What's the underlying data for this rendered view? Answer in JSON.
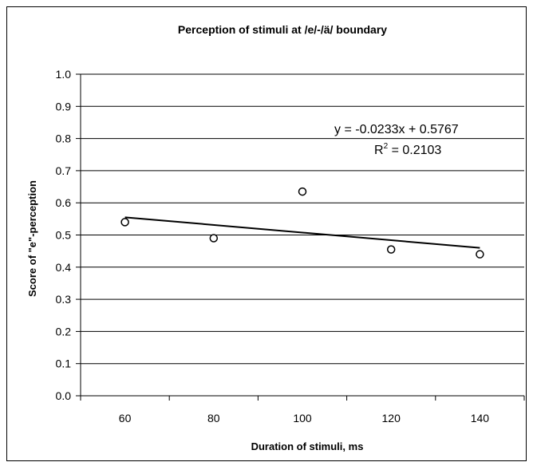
{
  "chart_data": {
    "type": "scatter",
    "title": "Perception of stimuli at /e/-/ä/ boundary",
    "xlabel": "Duration of stimuli, ms",
    "ylabel": "Score of \"e\"-perception",
    "xlim": [
      50,
      150
    ],
    "ylim": [
      0.0,
      1.0
    ],
    "x_ticks": [
      "60",
      "80",
      "100",
      "120",
      "140"
    ],
    "y_ticks": [
      "0.0",
      "0.1",
      "0.2",
      "0.3",
      "0.4",
      "0.5",
      "0.6",
      "0.7",
      "0.8",
      "0.9",
      "1.0"
    ],
    "grid": "horizontal",
    "points": [
      {
        "x": 60,
        "y": 0.54
      },
      {
        "x": 80,
        "y": 0.49
      },
      {
        "x": 100,
        "y": 0.635
      },
      {
        "x": 120,
        "y": 0.455
      },
      {
        "x": 140,
        "y": 0.44
      }
    ],
    "trendline": {
      "type": "linear",
      "slope": -0.0233,
      "intercept": 0.5767,
      "equation_label": "y = -0.0233x + 0.5767",
      "r2_label": "R",
      "r2_sup": "2",
      "r2_value": " = 0.2103",
      "x_start": 60,
      "x_end": 140,
      "y_start": 0.555,
      "y_end": 0.46
    }
  }
}
